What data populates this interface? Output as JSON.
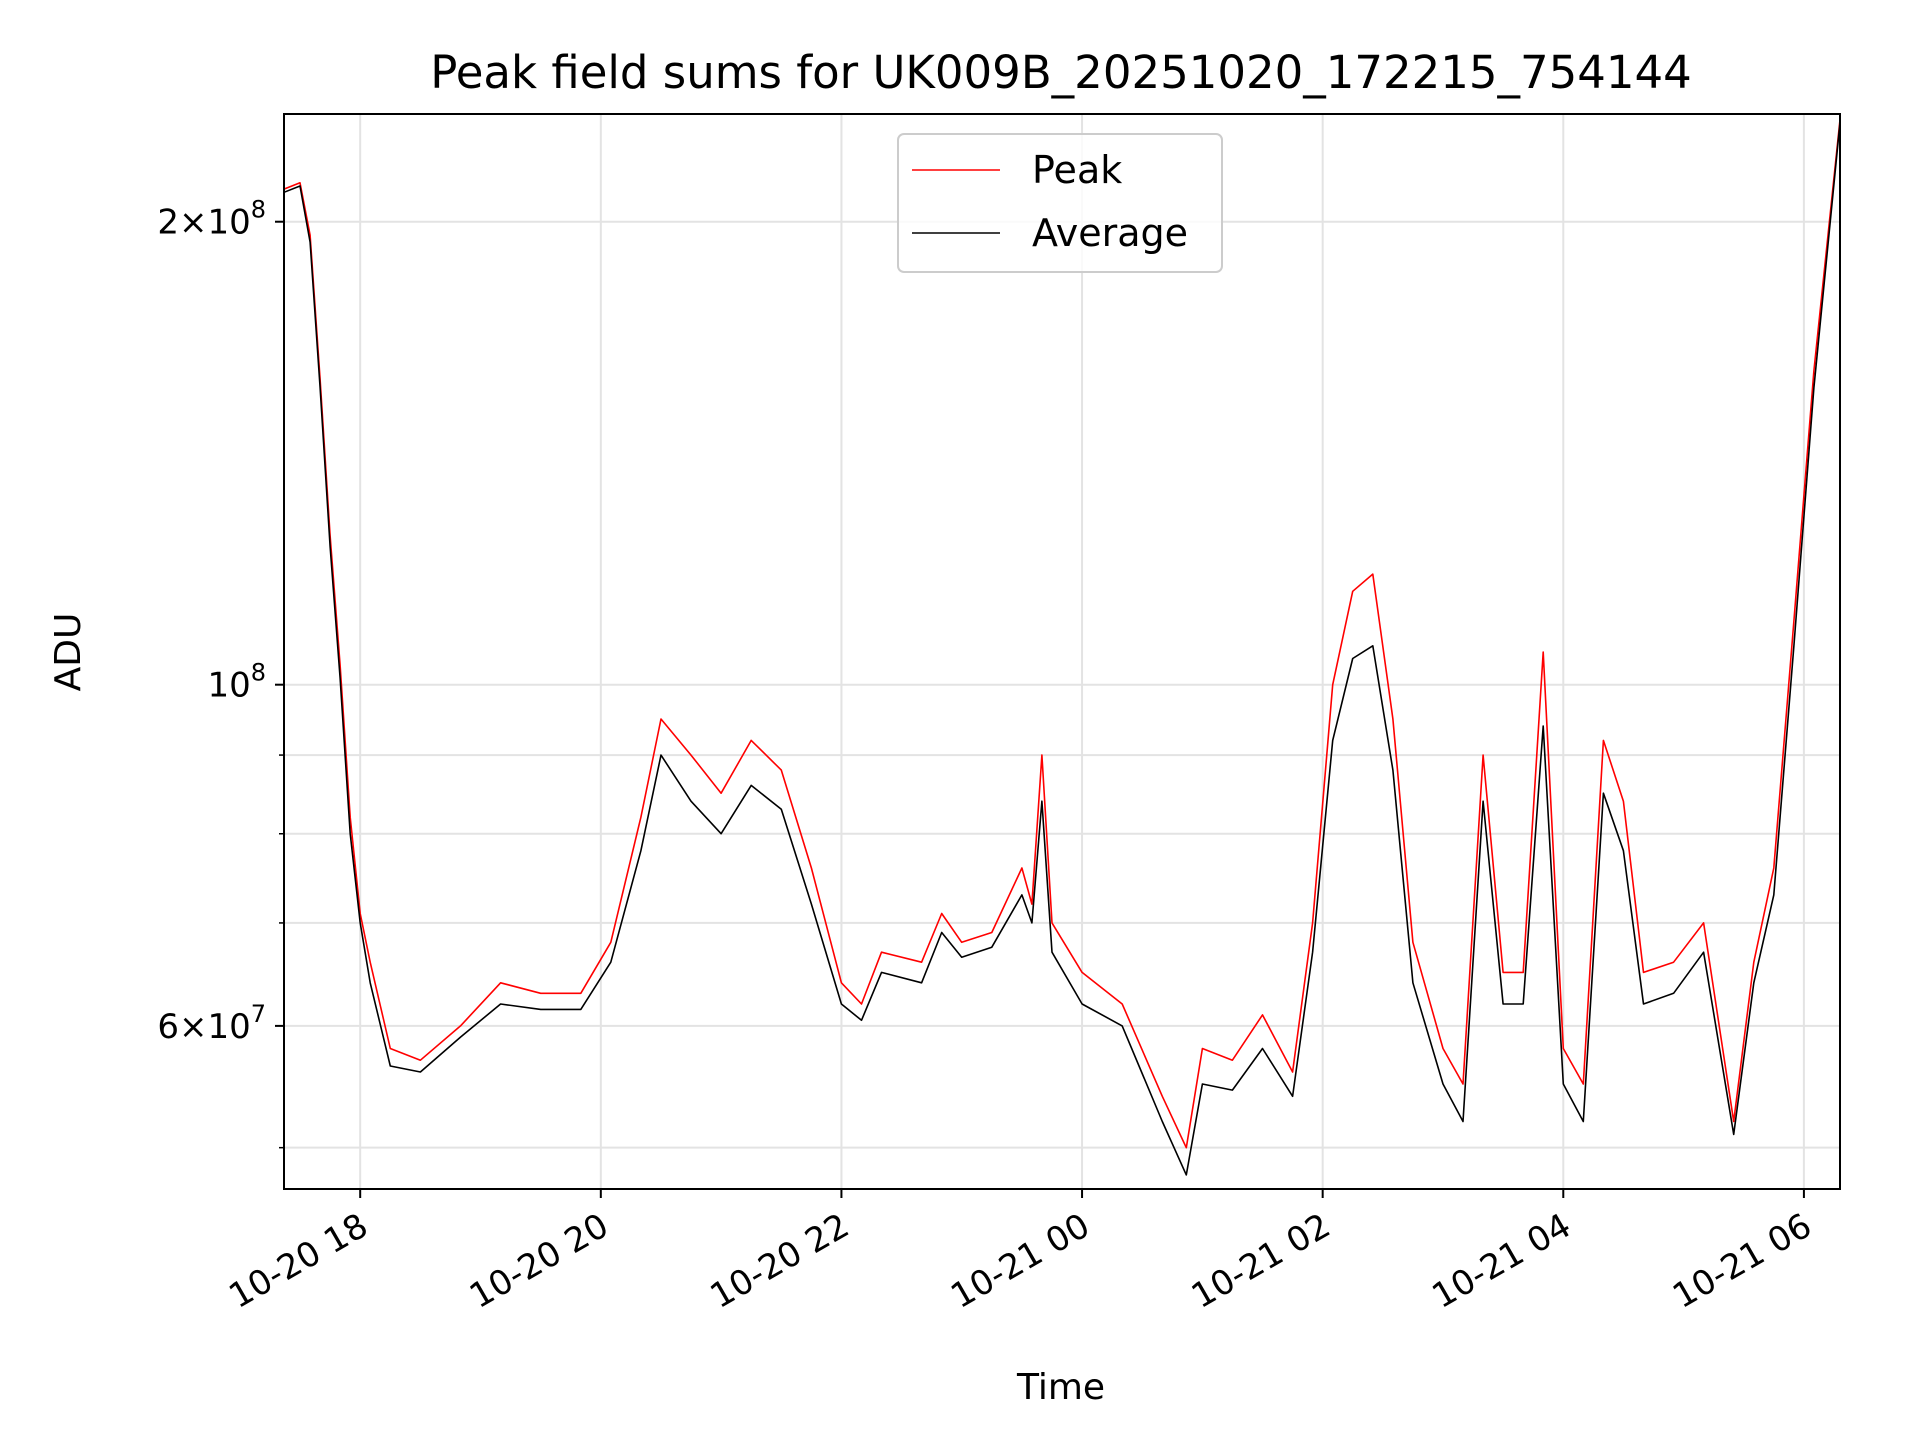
{
  "chart_data": {
    "type": "line",
    "title": "Peak field sums for UK009B_20251020_172215_754144",
    "xlabel": "Time",
    "ylabel": "ADU",
    "yscale": "log",
    "ylim": [
      47000000,
      235000000
    ],
    "xlim": [
      "2025-10-20 17:22",
      "2025-10-21 06:18"
    ],
    "grid": true,
    "legend": {
      "position": "upper-center",
      "entries": [
        "Peak",
        "Average"
      ]
    },
    "x_ticks": [
      {
        "t": "2025-10-20 18:00",
        "label": "10-20 18"
      },
      {
        "t": "2025-10-20 20:00",
        "label": "10-20 20"
      },
      {
        "t": "2025-10-20 22:00",
        "label": "10-20 22"
      },
      {
        "t": "2025-10-21 00:00",
        "label": "10-21 00"
      },
      {
        "t": "2025-10-21 02:00",
        "label": "10-21 02"
      },
      {
        "t": "2025-10-21 04:00",
        "label": "10-21 04"
      },
      {
        "t": "2025-10-21 06:00",
        "label": "10-21 06"
      }
    ],
    "y_major_ticks": [
      {
        "value": 60000000,
        "label_mantissa": "6",
        "label_exponent": "7",
        "has_mantissa": true
      },
      {
        "value": 100000000,
        "label_mantissa": "",
        "label_exponent": "8",
        "has_mantissa": false
      },
      {
        "value": 200000000,
        "label_mantissa": "2",
        "label_exponent": "8",
        "has_mantissa": true
      }
    ],
    "y_minor_ticks": [
      50000000,
      70000000,
      80000000,
      90000000
    ],
    "series": [
      {
        "name": "Peak",
        "color": "#ff0000",
        "points": [
          [
            "2025-10-20 17:22",
            210000000
          ],
          [
            "2025-10-20 17:30",
            212000000
          ],
          [
            "2025-10-20 17:35",
            196000000
          ],
          [
            "2025-10-20 17:40",
            158000000
          ],
          [
            "2025-10-20 17:45",
            125000000
          ],
          [
            "2025-10-20 17:50",
            103000000
          ],
          [
            "2025-10-20 17:55",
            82000000
          ],
          [
            "2025-10-20 18:00",
            71000000
          ],
          [
            "2025-10-20 18:05",
            66000000
          ],
          [
            "2025-10-20 18:15",
            58000000
          ],
          [
            "2025-10-20 18:30",
            57000000
          ],
          [
            "2025-10-20 18:50",
            60000000
          ],
          [
            "2025-10-20 19:10",
            64000000
          ],
          [
            "2025-10-20 19:30",
            63000000
          ],
          [
            "2025-10-20 19:50",
            63000000
          ],
          [
            "2025-10-20 20:05",
            68000000
          ],
          [
            "2025-10-20 20:20",
            82000000
          ],
          [
            "2025-10-20 20:30",
            95000000
          ],
          [
            "2025-10-20 20:45",
            90000000
          ],
          [
            "2025-10-20 21:00",
            85000000
          ],
          [
            "2025-10-20 21:15",
            92000000
          ],
          [
            "2025-10-20 21:30",
            88000000
          ],
          [
            "2025-10-20 21:45",
            76000000
          ],
          [
            "2025-10-20 22:00",
            64000000
          ],
          [
            "2025-10-20 22:10",
            62000000
          ],
          [
            "2025-10-20 22:20",
            67000000
          ],
          [
            "2025-10-20 22:40",
            66000000
          ],
          [
            "2025-10-20 22:50",
            71000000
          ],
          [
            "2025-10-20 23:00",
            68000000
          ],
          [
            "2025-10-20 23:15",
            69000000
          ],
          [
            "2025-10-20 23:30",
            76000000
          ],
          [
            "2025-10-20 23:35",
            72000000
          ],
          [
            "2025-10-20 23:40",
            90000000
          ],
          [
            "2025-10-20 23:45",
            70000000
          ],
          [
            "2025-10-21 00:00",
            65000000
          ],
          [
            "2025-10-21 00:20",
            62000000
          ],
          [
            "2025-10-21 00:40",
            54000000
          ],
          [
            "2025-10-21 00:52",
            50000000
          ],
          [
            "2025-10-21 01:00",
            58000000
          ],
          [
            "2025-10-21 01:15",
            57000000
          ],
          [
            "2025-10-21 01:30",
            61000000
          ],
          [
            "2025-10-21 01:45",
            56000000
          ],
          [
            "2025-10-21 01:55",
            70000000
          ],
          [
            "2025-10-21 02:05",
            100000000
          ],
          [
            "2025-10-21 02:15",
            115000000
          ],
          [
            "2025-10-21 02:25",
            118000000
          ],
          [
            "2025-10-21 02:35",
            95000000
          ],
          [
            "2025-10-21 02:45",
            68000000
          ],
          [
            "2025-10-21 03:00",
            58000000
          ],
          [
            "2025-10-21 03:10",
            55000000
          ],
          [
            "2025-10-21 03:20",
            90000000
          ],
          [
            "2025-10-21 03:30",
            65000000
          ],
          [
            "2025-10-21 03:40",
            65000000
          ],
          [
            "2025-10-21 03:50",
            105000000
          ],
          [
            "2025-10-21 04:00",
            58000000
          ],
          [
            "2025-10-21 04:10",
            55000000
          ],
          [
            "2025-10-21 04:20",
            92000000
          ],
          [
            "2025-10-21 04:30",
            84000000
          ],
          [
            "2025-10-21 04:40",
            65000000
          ],
          [
            "2025-10-21 04:55",
            66000000
          ],
          [
            "2025-10-21 05:10",
            70000000
          ],
          [
            "2025-10-21 05:25",
            52000000
          ],
          [
            "2025-10-21 05:35",
            66000000
          ],
          [
            "2025-10-21 05:45",
            76000000
          ],
          [
            "2025-10-21 05:55",
            110000000
          ],
          [
            "2025-10-21 06:05",
            160000000
          ],
          [
            "2025-10-21 06:18",
            233000000
          ]
        ]
      },
      {
        "name": "Average",
        "color": "#000000",
        "points": [
          [
            "2025-10-20 17:22",
            209000000
          ],
          [
            "2025-10-20 17:30",
            211000000
          ],
          [
            "2025-10-20 17:35",
            194000000
          ],
          [
            "2025-10-20 17:40",
            156000000
          ],
          [
            "2025-10-20 17:45",
            123000000
          ],
          [
            "2025-10-20 17:50",
            101000000
          ],
          [
            "2025-10-20 17:55",
            80000000
          ],
          [
            "2025-10-20 18:00",
            70000000
          ],
          [
            "2025-10-20 18:05",
            64000000
          ],
          [
            "2025-10-20 18:15",
            56500000
          ],
          [
            "2025-10-20 18:30",
            56000000
          ],
          [
            "2025-10-20 18:50",
            59000000
          ],
          [
            "2025-10-20 19:10",
            62000000
          ],
          [
            "2025-10-20 19:30",
            61500000
          ],
          [
            "2025-10-20 19:50",
            61500000
          ],
          [
            "2025-10-20 20:05",
            66000000
          ],
          [
            "2025-10-20 20:20",
            78000000
          ],
          [
            "2025-10-20 20:30",
            90000000
          ],
          [
            "2025-10-20 20:45",
            84000000
          ],
          [
            "2025-10-20 21:00",
            80000000
          ],
          [
            "2025-10-20 21:15",
            86000000
          ],
          [
            "2025-10-20 21:30",
            83000000
          ],
          [
            "2025-10-20 21:45",
            72000000
          ],
          [
            "2025-10-20 22:00",
            62000000
          ],
          [
            "2025-10-20 22:10",
            60500000
          ],
          [
            "2025-10-20 22:20",
            65000000
          ],
          [
            "2025-10-20 22:40",
            64000000
          ],
          [
            "2025-10-20 22:50",
            69000000
          ],
          [
            "2025-10-20 23:00",
            66500000
          ],
          [
            "2025-10-20 23:15",
            67500000
          ],
          [
            "2025-10-20 23:30",
            73000000
          ],
          [
            "2025-10-20 23:35",
            70000000
          ],
          [
            "2025-10-20 23:40",
            84000000
          ],
          [
            "2025-10-20 23:45",
            67000000
          ],
          [
            "2025-10-21 00:00",
            62000000
          ],
          [
            "2025-10-21 00:20",
            60000000
          ],
          [
            "2025-10-21 00:40",
            52000000
          ],
          [
            "2025-10-21 00:52",
            48000000
          ],
          [
            "2025-10-21 01:00",
            55000000
          ],
          [
            "2025-10-21 01:15",
            54500000
          ],
          [
            "2025-10-21 01:30",
            58000000
          ],
          [
            "2025-10-21 01:45",
            54000000
          ],
          [
            "2025-10-21 01:55",
            67000000
          ],
          [
            "2025-10-21 02:05",
            92000000
          ],
          [
            "2025-10-21 02:15",
            104000000
          ],
          [
            "2025-10-21 02:25",
            106000000
          ],
          [
            "2025-10-21 02:35",
            88000000
          ],
          [
            "2025-10-21 02:45",
            64000000
          ],
          [
            "2025-10-21 03:00",
            55000000
          ],
          [
            "2025-10-21 03:10",
            52000000
          ],
          [
            "2025-10-21 03:20",
            84000000
          ],
          [
            "2025-10-21 03:30",
            62000000
          ],
          [
            "2025-10-21 03:40",
            62000000
          ],
          [
            "2025-10-21 03:50",
            94000000
          ],
          [
            "2025-10-21 04:00",
            55000000
          ],
          [
            "2025-10-21 04:10",
            52000000
          ],
          [
            "2025-10-21 04:20",
            85000000
          ],
          [
            "2025-10-21 04:30",
            78000000
          ],
          [
            "2025-10-21 04:40",
            62000000
          ],
          [
            "2025-10-21 04:55",
            63000000
          ],
          [
            "2025-10-21 05:10",
            67000000
          ],
          [
            "2025-10-21 05:25",
            51000000
          ],
          [
            "2025-10-21 05:35",
            64000000
          ],
          [
            "2025-10-21 05:45",
            73000000
          ],
          [
            "2025-10-21 05:55",
            106000000
          ],
          [
            "2025-10-21 06:05",
            156000000
          ],
          [
            "2025-10-21 06:18",
            232000000
          ]
        ]
      }
    ]
  }
}
